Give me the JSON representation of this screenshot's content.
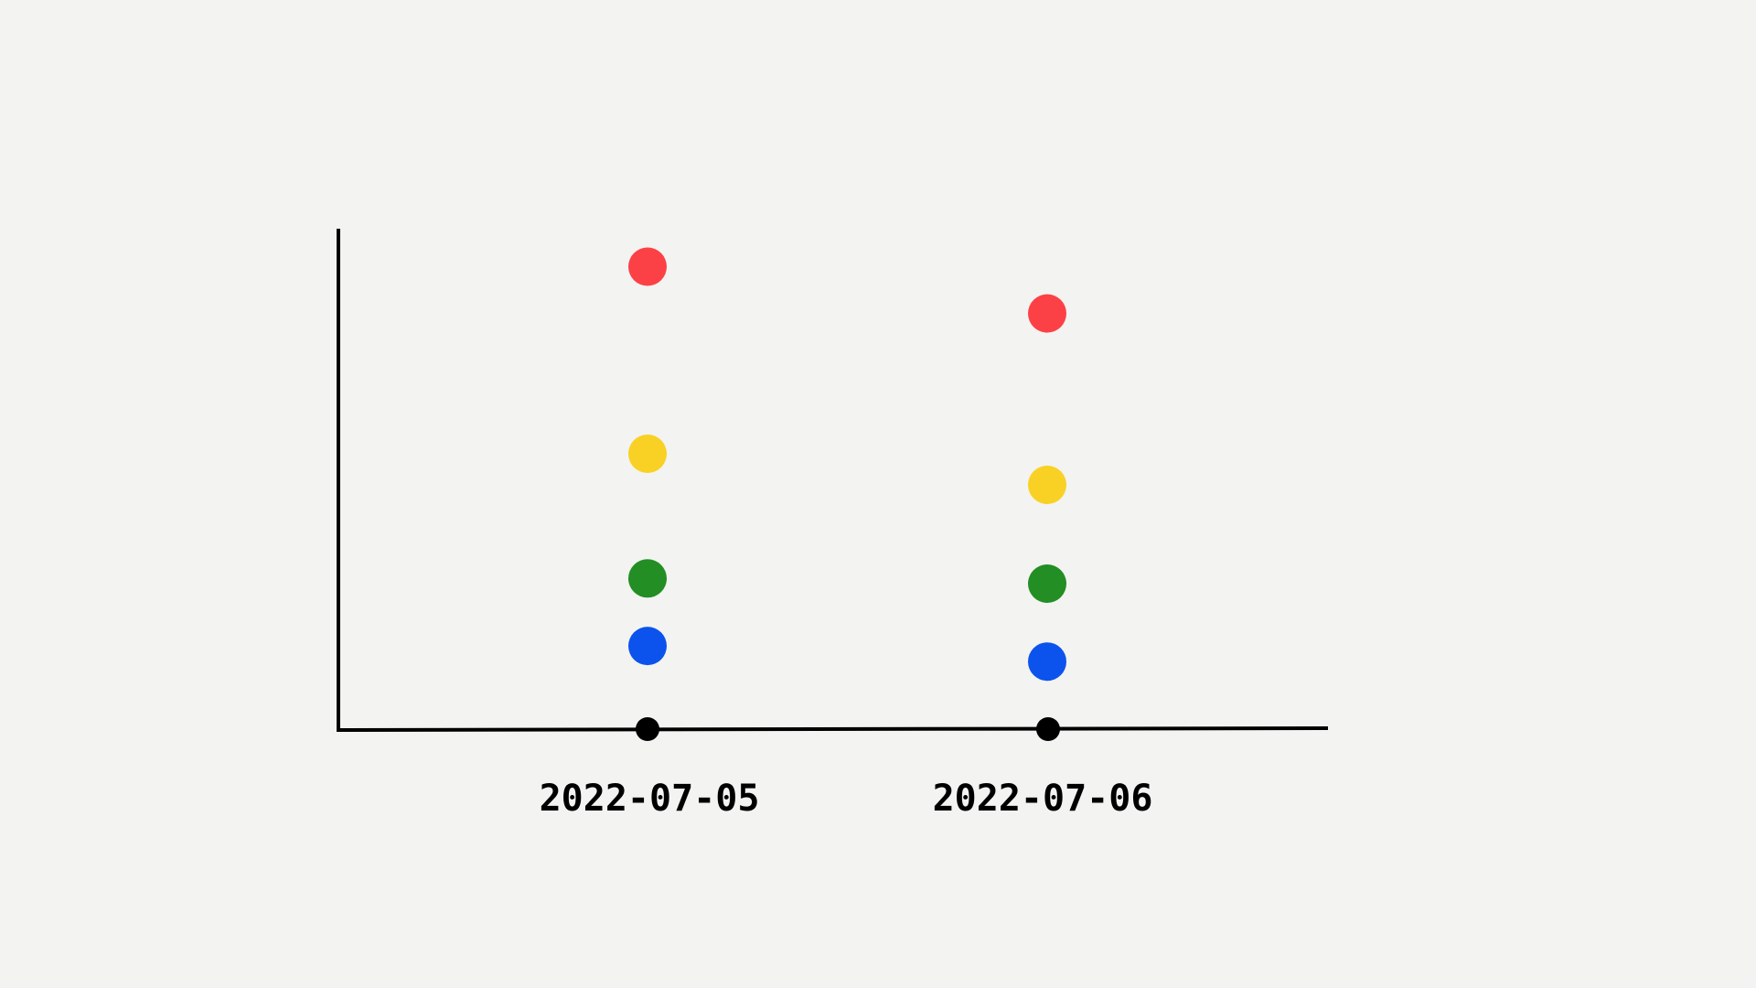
{
  "chart_data": {
    "type": "scatter",
    "title": "",
    "xlabel": "",
    "ylabel": "",
    "x_type": "category",
    "categories": [
      "2022-07-05",
      "2022-07-06"
    ],
    "ylim": [
      0,
      100
    ],
    "grid": false,
    "legend": "none",
    "y_ticks_shown": false,
    "series": [
      {
        "color": "#fc4146",
        "values": [
          89,
          80
        ]
      },
      {
        "color": "#f9d124",
        "values": [
          53,
          47
        ]
      },
      {
        "color": "#228e24",
        "values": [
          29,
          28
        ]
      },
      {
        "color": "#0c53ed",
        "values": [
          16,
          13
        ]
      }
    ],
    "colors": {
      "background": "#f3f3f1",
      "axis": "#000000"
    }
  }
}
